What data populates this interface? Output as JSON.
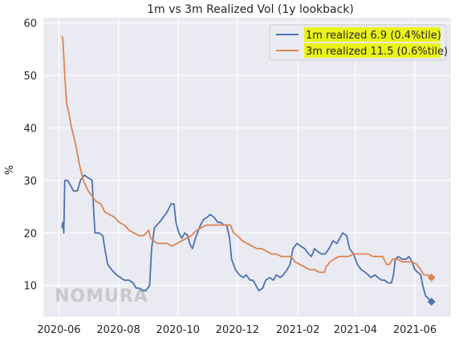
{
  "chart_data": {
    "type": "line",
    "title": "1m vs 3m Realized Vol (1y lookback)",
    "xlabel": "",
    "ylabel": "%",
    "xlim": [
      "2020-05-16",
      "2021-07-08"
    ],
    "ylim": [
      4,
      61
    ],
    "yticks": [
      10,
      20,
      30,
      40,
      50,
      60
    ],
    "xticks": [
      "2020-06",
      "2020-08",
      "2020-10",
      "2020-12",
      "2021-02",
      "2021-04",
      "2021-06"
    ],
    "grid": true,
    "legend_position": "top-right",
    "watermark": "NOMURA",
    "series": [
      {
        "name": "1m realized 6.9 (0.4%tile)",
        "color": "#4c72b0",
        "end_marker": "diamond",
        "points": [
          [
            "2020-06-04",
            21
          ],
          [
            "2020-06-05",
            22
          ],
          [
            "2020-06-06",
            20
          ],
          [
            "2020-06-07",
            30
          ],
          [
            "2020-06-10",
            30
          ],
          [
            "2020-06-13",
            29
          ],
          [
            "2020-06-16",
            28
          ],
          [
            "2020-06-20",
            28
          ],
          [
            "2020-06-23",
            30
          ],
          [
            "2020-06-27",
            31
          ],
          [
            "2020-07-01",
            30.5
          ],
          [
            "2020-07-05",
            30
          ],
          [
            "2020-07-07",
            23
          ],
          [
            "2020-07-08",
            20
          ],
          [
            "2020-07-12",
            20
          ],
          [
            "2020-07-16",
            19.5
          ],
          [
            "2020-07-18",
            17
          ],
          [
            "2020-07-21",
            14
          ],
          [
            "2020-07-25",
            13
          ],
          [
            "2020-07-30",
            12
          ],
          [
            "2020-08-03",
            11.5
          ],
          [
            "2020-08-07",
            11
          ],
          [
            "2020-08-12",
            11
          ],
          [
            "2020-08-16",
            10.5
          ],
          [
            "2020-08-19",
            9.5
          ],
          [
            "2020-08-22",
            9.5
          ],
          [
            "2020-08-26",
            9
          ],
          [
            "2020-08-29",
            9
          ],
          [
            "2020-09-02",
            10
          ],
          [
            "2020-09-04",
            17
          ],
          [
            "2020-09-07",
            21
          ],
          [
            "2020-09-12",
            22
          ],
          [
            "2020-09-16",
            23
          ],
          [
            "2020-09-20",
            24
          ],
          [
            "2020-09-24",
            25.5
          ],
          [
            "2020-09-27",
            25.5
          ],
          [
            "2020-09-29",
            22
          ],
          [
            "2020-10-02",
            20
          ],
          [
            "2020-10-05",
            19
          ],
          [
            "2020-10-08",
            20
          ],
          [
            "2020-10-11",
            19.5
          ],
          [
            "2020-10-13",
            18
          ],
          [
            "2020-10-16",
            17
          ],
          [
            "2020-10-19",
            19
          ],
          [
            "2020-10-23",
            21
          ],
          [
            "2020-10-27",
            22.5
          ],
          [
            "2020-10-31",
            23
          ],
          [
            "2020-11-03",
            23.5
          ],
          [
            "2020-11-07",
            23
          ],
          [
            "2020-11-11",
            22
          ],
          [
            "2020-11-14",
            22
          ],
          [
            "2020-11-17",
            21.5
          ],
          [
            "2020-11-20",
            21.5
          ],
          [
            "2020-11-23",
            19
          ],
          [
            "2020-11-25",
            15
          ],
          [
            "2020-11-29",
            13
          ],
          [
            "2020-12-03",
            12
          ],
          [
            "2020-12-07",
            11.5
          ],
          [
            "2020-12-10",
            12
          ],
          [
            "2020-12-14",
            11
          ],
          [
            "2020-12-17",
            11
          ],
          [
            "2020-12-20",
            10
          ],
          [
            "2020-12-23",
            9
          ],
          [
            "2020-12-27",
            9.5
          ],
          [
            "2020-12-30",
            11
          ],
          [
            "2021-01-03",
            11.5
          ],
          [
            "2021-01-07",
            11
          ],
          [
            "2021-01-10",
            12
          ],
          [
            "2021-01-14",
            11.5
          ],
          [
            "2021-01-17",
            12
          ],
          [
            "2021-01-21",
            13
          ],
          [
            "2021-01-24",
            14
          ],
          [
            "2021-01-27",
            17
          ],
          [
            "2021-01-31",
            18
          ],
          [
            "2021-02-04",
            17.5
          ],
          [
            "2021-02-08",
            17
          ],
          [
            "2021-02-12",
            16
          ],
          [
            "2021-02-15",
            15.5
          ],
          [
            "2021-02-18",
            17
          ],
          [
            "2021-02-21",
            16.5
          ],
          [
            "2021-02-25",
            16
          ],
          [
            "2021-03-01",
            16
          ],
          [
            "2021-03-05",
            17
          ],
          [
            "2021-03-09",
            18.5
          ],
          [
            "2021-03-13",
            18
          ],
          [
            "2021-03-16",
            19
          ],
          [
            "2021-03-19",
            20
          ],
          [
            "2021-03-23",
            19.5
          ],
          [
            "2021-03-26",
            17
          ],
          [
            "2021-03-30",
            16
          ],
          [
            "2021-04-03",
            14
          ],
          [
            "2021-04-07",
            13
          ],
          [
            "2021-04-11",
            12.5
          ],
          [
            "2021-04-14",
            12
          ],
          [
            "2021-04-17",
            11.5
          ],
          [
            "2021-04-21",
            12
          ],
          [
            "2021-04-24",
            11.5
          ],
          [
            "2021-04-28",
            11
          ],
          [
            "2021-05-01",
            11
          ],
          [
            "2021-05-04",
            10.5
          ],
          [
            "2021-05-08",
            10.5
          ],
          [
            "2021-05-10",
            12
          ],
          [
            "2021-05-12",
            15
          ],
          [
            "2021-05-15",
            15.5
          ],
          [
            "2021-05-19",
            15
          ],
          [
            "2021-05-23",
            15
          ],
          [
            "2021-05-26",
            15.5
          ],
          [
            "2021-05-29",
            14.5
          ],
          [
            "2021-06-01",
            13
          ],
          [
            "2021-06-04",
            12.5
          ],
          [
            "2021-06-07",
            12
          ],
          [
            "2021-06-09",
            10
          ],
          [
            "2021-06-12",
            8
          ],
          [
            "2021-06-15",
            7.5
          ],
          [
            "2021-06-18",
            6.9
          ]
        ]
      },
      {
        "name": "3m realized 11.5 (0.6%tile)",
        "color": "#dd8452",
        "end_marker": "diamond",
        "points": [
          [
            "2020-06-04",
            57.5
          ],
          [
            "2020-06-05",
            57
          ],
          [
            "2020-06-07",
            50
          ],
          [
            "2020-06-09",
            44.5
          ],
          [
            "2020-06-11",
            43
          ],
          [
            "2020-06-14",
            40
          ],
          [
            "2020-06-18",
            37
          ],
          [
            "2020-06-22",
            33
          ],
          [
            "2020-06-26",
            30
          ],
          [
            "2020-07-01",
            28
          ],
          [
            "2020-07-05",
            27
          ],
          [
            "2020-07-09",
            26
          ],
          [
            "2020-07-14",
            25.5
          ],
          [
            "2020-07-18",
            24
          ],
          [
            "2020-07-23",
            23.5
          ],
          [
            "2020-07-28",
            23
          ],
          [
            "2020-08-02",
            22
          ],
          [
            "2020-08-07",
            21.5
          ],
          [
            "2020-08-12",
            20.5
          ],
          [
            "2020-08-17",
            20
          ],
          [
            "2020-08-22",
            19.5
          ],
          [
            "2020-08-27",
            19.5
          ],
          [
            "2020-09-01",
            20.5
          ],
          [
            "2020-09-03",
            19
          ],
          [
            "2020-09-06",
            18.5
          ],
          [
            "2020-09-10",
            18
          ],
          [
            "2020-09-15",
            18
          ],
          [
            "2020-09-20",
            18
          ],
          [
            "2020-09-25",
            17.5
          ],
          [
            "2020-09-30",
            18
          ],
          [
            "2020-10-05",
            18.5
          ],
          [
            "2020-10-10",
            19
          ],
          [
            "2020-10-15",
            19.5
          ],
          [
            "2020-10-20",
            20.5
          ],
          [
            "2020-10-25",
            21
          ],
          [
            "2020-10-30",
            21.5
          ],
          [
            "2020-11-04",
            21.5
          ],
          [
            "2020-11-09",
            21.5
          ],
          [
            "2020-11-14",
            21.5
          ],
          [
            "2020-11-19",
            21.5
          ],
          [
            "2020-11-24",
            21.5
          ],
          [
            "2020-11-27",
            20
          ],
          [
            "2020-12-01",
            19.5
          ],
          [
            "2020-12-06",
            18.5
          ],
          [
            "2020-12-11",
            18
          ],
          [
            "2020-12-16",
            17.5
          ],
          [
            "2020-12-21",
            17
          ],
          [
            "2020-12-26",
            17
          ],
          [
            "2020-12-31",
            16.5
          ],
          [
            "2021-01-05",
            16
          ],
          [
            "2021-01-10",
            16
          ],
          [
            "2021-01-15",
            15.5
          ],
          [
            "2021-01-20",
            15.5
          ],
          [
            "2021-01-25",
            15.5
          ],
          [
            "2021-01-29",
            14.5
          ],
          [
            "2021-02-03",
            14
          ],
          [
            "2021-02-08",
            13.5
          ],
          [
            "2021-02-13",
            13
          ],
          [
            "2021-02-18",
            13
          ],
          [
            "2021-02-23",
            12.5
          ],
          [
            "2021-02-28",
            12.5
          ],
          [
            "2021-03-02",
            13.5
          ],
          [
            "2021-03-06",
            14.5
          ],
          [
            "2021-03-10",
            15
          ],
          [
            "2021-03-15",
            15.5
          ],
          [
            "2021-03-20",
            15.5
          ],
          [
            "2021-03-25",
            15.5
          ],
          [
            "2021-03-30",
            16
          ],
          [
            "2021-04-04",
            16
          ],
          [
            "2021-04-09",
            16
          ],
          [
            "2021-04-14",
            16
          ],
          [
            "2021-04-19",
            15.5
          ],
          [
            "2021-04-24",
            15.5
          ],
          [
            "2021-04-29",
            15.5
          ],
          [
            "2021-05-03",
            14
          ],
          [
            "2021-05-06",
            14
          ],
          [
            "2021-05-09",
            15
          ],
          [
            "2021-05-14",
            15
          ],
          [
            "2021-05-19",
            14.5
          ],
          [
            "2021-05-24",
            14.5
          ],
          [
            "2021-05-29",
            14.5
          ],
          [
            "2021-06-03",
            14
          ],
          [
            "2021-06-07",
            13
          ],
          [
            "2021-06-10",
            12
          ],
          [
            "2021-06-14",
            12
          ],
          [
            "2021-06-18",
            11.5
          ]
        ]
      }
    ]
  }
}
